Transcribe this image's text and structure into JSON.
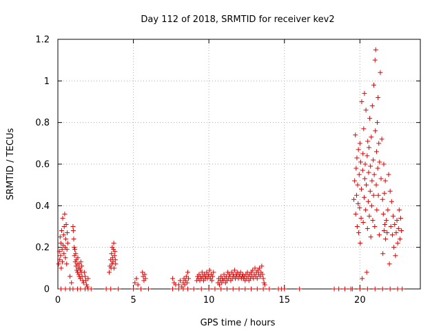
{
  "chart_data": {
    "type": "scatter",
    "title": "Day 112 of 2018, SRMTID for receiver kev2",
    "xlabel": "GPS time / hours",
    "ylabel": "SRMTID / TECUs",
    "xlim": [
      0,
      24
    ],
    "ylim": [
      0,
      1.2
    ],
    "xticks": [
      0,
      5,
      10,
      15,
      20
    ],
    "yticks": [
      0,
      0.2,
      0.4,
      0.6,
      0.8,
      1,
      1.2
    ],
    "xtick_labels": [
      "0",
      "5",
      "10",
      "15",
      "20"
    ],
    "ytick_labels": [
      "0",
      "0.2",
      "0.4",
      "0.6",
      "0.8",
      "1",
      "1.2"
    ],
    "grid": true,
    "marker": "+",
    "series_color": "#e00000",
    "series": [
      {
        "name": "kev2",
        "points": [
          [
            0.05,
            0.12
          ],
          [
            0.1,
            0.18
          ],
          [
            0.12,
            0.14
          ],
          [
            0.15,
            0.25
          ],
          [
            0.18,
            0.16
          ],
          [
            0.2,
            0.22
          ],
          [
            0.22,
            0.1
          ],
          [
            0.25,
            0.28
          ],
          [
            0.28,
            0.19
          ],
          [
            0.3,
            0.13
          ],
          [
            0.32,
            0.34
          ],
          [
            0.35,
            0.21
          ],
          [
            0.38,
            0.26
          ],
          [
            0.4,
            0.17
          ],
          [
            0.42,
            0.3
          ],
          [
            0.45,
            0.36
          ],
          [
            0.48,
            0.2
          ],
          [
            0.5,
            0.15
          ],
          [
            0.52,
            0.24
          ],
          [
            0.55,
            0.31
          ],
          [
            0.58,
            0.12
          ],
          [
            0.6,
            0.19
          ],
          [
            0.62,
            0.27
          ],
          [
            0.65,
            0.22
          ],
          [
            0.8,
            0.06
          ],
          [
            0.9,
            0.03
          ],
          [
            1.0,
            0.3
          ],
          [
            1.02,
            0.28
          ],
          [
            1.05,
            0.24
          ],
          [
            1.08,
            0.2
          ],
          [
            1.1,
            0.16
          ],
          [
            1.12,
            0.19
          ],
          [
            1.15,
            0.13
          ],
          [
            1.18,
            0.17
          ],
          [
            1.2,
            0.11
          ],
          [
            1.22,
            0.14
          ],
          [
            1.25,
            0.09
          ],
          [
            1.28,
            0.12
          ],
          [
            1.3,
            0.08
          ],
          [
            1.32,
            0.15
          ],
          [
            1.35,
            0.1
          ],
          [
            1.38,
            0.07
          ],
          [
            1.4,
            0.12
          ],
          [
            1.42,
            0.06
          ],
          [
            1.45,
            0.1
          ],
          [
            1.48,
            0.05
          ],
          [
            1.5,
            0.09
          ],
          [
            1.52,
            0.13
          ],
          [
            1.55,
            0.08
          ],
          [
            1.58,
            0.11
          ],
          [
            1.6,
            0.06
          ],
          [
            1.65,
            0.04
          ],
          [
            1.7,
            0.03
          ],
          [
            1.75,
            0.08
          ],
          [
            1.8,
            0.06
          ],
          [
            1.85,
            0.04
          ],
          [
            1.9,
            0.02
          ],
          [
            1.95,
            0.01
          ],
          [
            2.0,
            0.05
          ],
          [
            3.4,
            0.08
          ],
          [
            3.45,
            0.11
          ],
          [
            3.5,
            0.14
          ],
          [
            3.52,
            0.1
          ],
          [
            3.55,
            0.17
          ],
          [
            3.58,
            0.12
          ],
          [
            3.6,
            0.2
          ],
          [
            3.62,
            0.15
          ],
          [
            3.65,
            0.13
          ],
          [
            3.68,
            0.19
          ],
          [
            3.7,
            0.22
          ],
          [
            3.72,
            0.1
          ],
          [
            3.75,
            0.16
          ],
          [
            3.78,
            0.18
          ],
          [
            3.8,
            0.14
          ],
          [
            3.82,
            0.12
          ],
          [
            5.1,
            0.03
          ],
          [
            5.2,
            0.05
          ],
          [
            5.3,
            0.02
          ],
          [
            5.6,
            0.08
          ],
          [
            5.65,
            0.06
          ],
          [
            5.7,
            0.04
          ],
          [
            5.75,
            0.07
          ],
          [
            5.8,
            0.05
          ],
          [
            7.6,
            0.05
          ],
          [
            7.7,
            0.03
          ],
          [
            7.8,
            0.02
          ],
          [
            8.0,
            0.02
          ],
          [
            8.1,
            0.04
          ],
          [
            8.2,
            0.01
          ],
          [
            8.3,
            0.03
          ],
          [
            8.35,
            0.05
          ],
          [
            8.4,
            0.02
          ],
          [
            8.45,
            0.04
          ],
          [
            8.5,
            0.06
          ],
          [
            8.55,
            0.03
          ],
          [
            8.6,
            0.08
          ],
          [
            8.65,
            0.05
          ],
          [
            9.2,
            0.04
          ],
          [
            9.25,
            0.06
          ],
          [
            9.3,
            0.05
          ],
          [
            9.35,
            0.07
          ],
          [
            9.4,
            0.04
          ],
          [
            9.45,
            0.06
          ],
          [
            9.5,
            0.05
          ],
          [
            9.55,
            0.08
          ],
          [
            9.6,
            0.06
          ],
          [
            9.65,
            0.04
          ],
          [
            9.7,
            0.07
          ],
          [
            9.75,
            0.05
          ],
          [
            9.8,
            0.06
          ],
          [
            9.85,
            0.08
          ],
          [
            9.9,
            0.05
          ],
          [
            9.95,
            0.07
          ],
          [
            10.0,
            0.06
          ],
          [
            10.05,
            0.09
          ],
          [
            10.1,
            0.05
          ],
          [
            10.15,
            0.07
          ],
          [
            10.2,
            0.04
          ],
          [
            10.25,
            0.06
          ],
          [
            10.3,
            0.08
          ],
          [
            10.6,
            0.03
          ],
          [
            10.65,
            0.05
          ],
          [
            10.7,
            0.02
          ],
          [
            10.75,
            0.04
          ],
          [
            10.8,
            0.06
          ],
          [
            10.85,
            0.03
          ],
          [
            10.9,
            0.05
          ],
          [
            10.95,
            0.04
          ],
          [
            11.0,
            0.07
          ],
          [
            11.05,
            0.05
          ],
          [
            11.1,
            0.03
          ],
          [
            11.15,
            0.06
          ],
          [
            11.2,
            0.04
          ],
          [
            11.25,
            0.08
          ],
          [
            11.3,
            0.05
          ],
          [
            11.35,
            0.07
          ],
          [
            11.4,
            0.06
          ],
          [
            11.45,
            0.04
          ],
          [
            11.5,
            0.08
          ],
          [
            11.55,
            0.05
          ],
          [
            11.6,
            0.07
          ],
          [
            11.65,
            0.06
          ],
          [
            11.7,
            0.09
          ],
          [
            11.75,
            0.05
          ],
          [
            11.8,
            0.07
          ],
          [
            11.85,
            0.06
          ],
          [
            11.9,
            0.08
          ],
          [
            11.95,
            0.05
          ],
          [
            12.0,
            0.07
          ],
          [
            12.05,
            0.06
          ],
          [
            12.1,
            0.08
          ],
          [
            12.15,
            0.05
          ],
          [
            12.2,
            0.06
          ],
          [
            12.25,
            0.07
          ],
          [
            12.3,
            0.05
          ],
          [
            12.35,
            0.06
          ],
          [
            12.4,
            0.04
          ],
          [
            12.45,
            0.07
          ],
          [
            12.5,
            0.05
          ],
          [
            12.55,
            0.08
          ],
          [
            12.6,
            0.06
          ],
          [
            12.65,
            0.04
          ],
          [
            12.7,
            0.07
          ],
          [
            12.75,
            0.05
          ],
          [
            12.8,
            0.08
          ],
          [
            12.85,
            0.06
          ],
          [
            12.9,
            0.09
          ],
          [
            12.95,
            0.05
          ],
          [
            13.0,
            0.07
          ],
          [
            13.05,
            0.1
          ],
          [
            13.1,
            0.06
          ],
          [
            13.15,
            0.08
          ],
          [
            13.2,
            0.05
          ],
          [
            13.25,
            0.09
          ],
          [
            13.3,
            0.07
          ],
          [
            13.35,
            0.1
          ],
          [
            13.4,
            0.06
          ],
          [
            13.45,
            0.08
          ],
          [
            13.5,
            0.11
          ],
          [
            13.55,
            0.07
          ],
          [
            13.6,
            0.05
          ],
          [
            13.65,
            0.03
          ],
          [
            13.7,
            0.02
          ],
          [
            19.6,
            0.43
          ],
          [
            19.65,
            0.52
          ],
          [
            19.7,
            0.74
          ],
          [
            19.72,
            0.36
          ],
          [
            19.75,
            0.58
          ],
          [
            19.78,
            0.45
          ],
          [
            19.8,
            0.63
          ],
          [
            19.82,
            0.3
          ],
          [
            19.85,
            0.5
          ],
          [
            19.88,
            0.41
          ],
          [
            19.9,
            0.67
          ],
          [
            19.92,
            0.27
          ],
          [
            19.95,
            0.55
          ],
          [
            19.98,
            0.39
          ],
          [
            20.0,
            0.7
          ],
          [
            20.02,
            0.22
          ],
          [
            20.05,
            0.61
          ],
          [
            20.08,
            0.34
          ],
          [
            20.1,
            0.48
          ],
          [
            20.12,
            0.9
          ],
          [
            20.15,
            0.05
          ],
          [
            20.18,
            0.57
          ],
          [
            20.2,
            0.65
          ],
          [
            20.22,
            0.32
          ],
          [
            20.25,
            0.77
          ],
          [
            20.28,
            0.44
          ],
          [
            20.3,
            0.94
          ],
          [
            20.32,
            0.53
          ],
          [
            20.35,
            0.6
          ],
          [
            20.38,
            0.38
          ],
          [
            20.4,
            0.86
          ],
          [
            20.42,
            0.5
          ],
          [
            20.45,
            0.08
          ],
          [
            20.48,
            0.64
          ],
          [
            20.5,
            0.29
          ],
          [
            20.52,
            0.71
          ],
          [
            20.55,
            0.42
          ],
          [
            20.58,
            0.56
          ],
          [
            20.6,
            0.68
          ],
          [
            20.62,
            0.35
          ],
          [
            20.65,
            0.82
          ],
          [
            20.68,
            0.47
          ],
          [
            20.7,
            0.59
          ],
          [
            20.72,
            0.25
          ],
          [
            20.75,
            0.73
          ],
          [
            20.78,
            0.4
          ],
          [
            20.8,
            0.52
          ],
          [
            20.82,
            0.88
          ],
          [
            20.85,
            0.33
          ],
          [
            20.88,
            0.62
          ],
          [
            20.9,
            0.45
          ],
          [
            20.92,
            0.98
          ],
          [
            20.95,
            0.55
          ],
          [
            20.98,
            0.3
          ],
          [
            21.0,
            1.1
          ],
          [
            21.02,
            0.76
          ],
          [
            21.05,
            1.15
          ],
          [
            21.08,
            0.5
          ],
          [
            21.1,
            0.66
          ],
          [
            21.12,
            0.38
          ],
          [
            21.15,
            0.8
          ],
          [
            21.18,
            0.58
          ],
          [
            21.2,
            0.92
          ],
          [
            21.22,
            0.45
          ],
          [
            21.25,
            0.7
          ],
          [
            21.28,
            0.26
          ],
          [
            21.3,
            0.61
          ],
          [
            21.35,
            1.04
          ],
          [
            21.4,
            0.53
          ],
          [
            21.45,
            0.72
          ],
          [
            21.5,
            0.43
          ],
          [
            21.52,
            0.17
          ],
          [
            21.55,
            0.36
          ],
          [
            21.58,
            0.6
          ],
          [
            21.6,
            0.28
          ],
          [
            21.62,
            0.46
          ],
          [
            21.65,
            0.31
          ],
          [
            21.68,
            0.52
          ],
          [
            21.7,
            0.24
          ],
          [
            21.75,
            0.33
          ],
          [
            21.8,
            0.27
          ],
          [
            21.85,
            0.38
          ],
          [
            21.9,
            0.55
          ],
          [
            21.95,
            0.12
          ],
          [
            22.0,
            0.47
          ],
          [
            22.05,
            0.3
          ],
          [
            22.1,
            0.42
          ],
          [
            22.15,
            0.26
          ],
          [
            22.2,
            0.35
          ],
          [
            22.25,
            0.2
          ],
          [
            22.3,
            0.31
          ],
          [
            22.35,
            0.16
          ],
          [
            22.4,
            0.27
          ],
          [
            22.45,
            0.33
          ],
          [
            22.5,
            0.22
          ],
          [
            22.55,
            0.29
          ],
          [
            22.6,
            0.38
          ],
          [
            22.65,
            0.24
          ],
          [
            22.7,
            0.34
          ],
          [
            22.75,
            0.28
          ]
        ]
      }
    ],
    "zero_points_x": [
      0.2,
      0.5,
      0.8,
      1.0,
      1.3,
      1.5,
      1.8,
      2.0,
      2.2,
      3.2,
      3.5,
      4.0,
      5.0,
      5.5,
      6.0,
      7.6,
      8.0,
      8.3,
      8.6,
      9.0,
      9.5,
      10.0,
      10.4,
      10.8,
      11.2,
      11.6,
      12.0,
      12.4,
      12.8,
      13.2,
      13.6,
      14.0,
      14.6,
      14.8,
      15.0,
      16.0,
      18.3,
      18.6,
      19.0,
      19.4,
      19.5,
      20.0,
      20.5,
      21.0,
      21.5,
      22.0,
      22.5,
      22.8
    ]
  }
}
